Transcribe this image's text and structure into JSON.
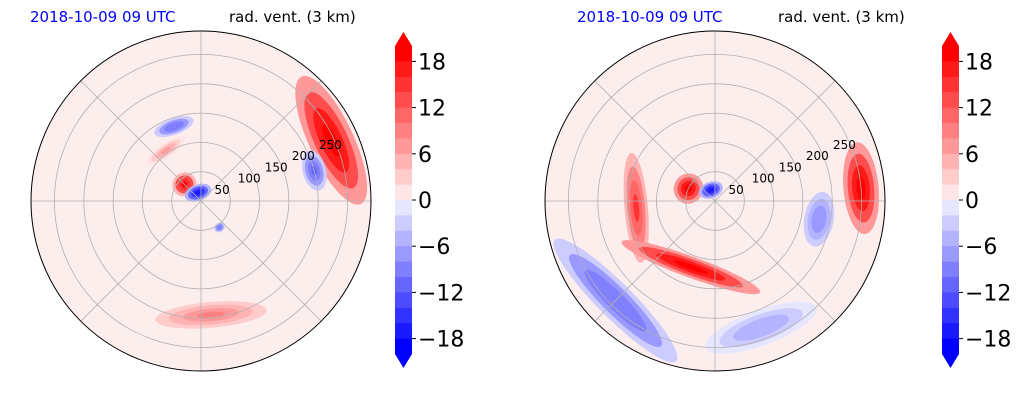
{
  "colors": {
    "time_title": "#0000ff",
    "ring_grid": "#b0b0b0",
    "outline": "#000000",
    "background_pos": "#fdeeee",
    "background_neg": "#eef0fd"
  },
  "colorbar": {
    "ticks": [
      "18",
      "12",
      "6",
      "0",
      "−6",
      "−12",
      "−18"
    ],
    "range": [
      -20,
      20
    ],
    "step": 2,
    "colors_negative": [
      "#0000ff",
      "#1a1aff",
      "#3333ff",
      "#4d4dff",
      "#6666ff",
      "#8080ff",
      "#9999ff",
      "#b3b3ff",
      "#ccccff",
      "#e6e6ff"
    ],
    "colors_positive": [
      "#ffe6e6",
      "#ffcccc",
      "#ffb3b3",
      "#ff9999",
      "#ff8080",
      "#ff6666",
      "#ff4d4d",
      "#ff3333",
      "#ff1a1a",
      "#ff0000"
    ]
  },
  "chart_data": [
    {
      "type": "polar-contour",
      "time_title": "2018-10-09 09 UTC",
      "var_title": "rad. vent. (3 km)",
      "r_labels": [
        "50",
        "100",
        "150",
        "200",
        "250"
      ],
      "r_values": [
        50,
        100,
        150,
        200,
        250
      ],
      "r_max": 290,
      "spokes_deg": [
        0,
        45,
        90,
        135,
        180,
        225,
        270,
        315
      ],
      "value_range": [
        -20,
        20
      ],
      "features": [
        {
          "sign": "pos",
          "r": 40,
          "theta": 135,
          "rr": 20,
          "rt": 30,
          "level": 19
        },
        {
          "sign": "pos",
          "r": 105,
          "theta": 125,
          "rr": 12,
          "rt": 22,
          "level": 6
        },
        {
          "sign": "neg",
          "r": 15,
          "theta": 110,
          "rr": 14,
          "rt": 45,
          "level": -18
        },
        {
          "sign": "neg",
          "r": 135,
          "theta": 110,
          "rr": 14,
          "rt": 15,
          "level": -10
        },
        {
          "sign": "pos",
          "r": 245,
          "theta": 25,
          "rr": 38,
          "rt": 28,
          "level": 20
        },
        {
          "sign": "neg",
          "r": 200,
          "theta": 15,
          "rr": 20,
          "rt": 10,
          "level": -12
        },
        {
          "sign": "pos",
          "r": 195,
          "theta": 275,
          "rr": 22,
          "rt": 28,
          "level": 8
        },
        {
          "sign": "neg",
          "r": 55,
          "theta": 305,
          "rr": 8,
          "rt": 10,
          "level": -10
        }
      ]
    },
    {
      "type": "polar-contour",
      "time_title": "2018-10-09 09 UTC",
      "var_title": "rad. vent. (3 km)",
      "r_labels": [
        "50",
        "100",
        "150",
        "200",
        "250"
      ],
      "r_values": [
        50,
        100,
        150,
        200,
        250
      ],
      "r_max": 290,
      "spokes_deg": [
        0,
        45,
        90,
        135,
        180,
        225,
        270,
        315
      ],
      "value_range": [
        -20,
        20
      ],
      "features": [
        {
          "sign": "pos",
          "r": 50,
          "theta": 155,
          "rr": 25,
          "rt": 30,
          "level": 20
        },
        {
          "sign": "neg",
          "r": 20,
          "theta": 110,
          "rr": 14,
          "rt": 40,
          "level": -18
        },
        {
          "sign": "pos",
          "r": 135,
          "theta": 185,
          "rr": 20,
          "rt": 40,
          "level": 14
        },
        {
          "sign": "pos",
          "r": 120,
          "theta": 250,
          "rr": 18,
          "rt": 60,
          "level": 20
        },
        {
          "sign": "neg",
          "r": 240,
          "theta": 225,
          "rr": 30,
          "rt": 35,
          "level": -10
        },
        {
          "sign": "pos",
          "r": 250,
          "theta": 5,
          "rr": 30,
          "rt": 18,
          "level": 20
        },
        {
          "sign": "neg",
          "r": 180,
          "theta": 350,
          "rr": 25,
          "rt": 15,
          "level": -8
        },
        {
          "sign": "neg",
          "r": 230,
          "theta": 290,
          "rr": 30,
          "rt": 25,
          "level": -6
        }
      ]
    }
  ]
}
